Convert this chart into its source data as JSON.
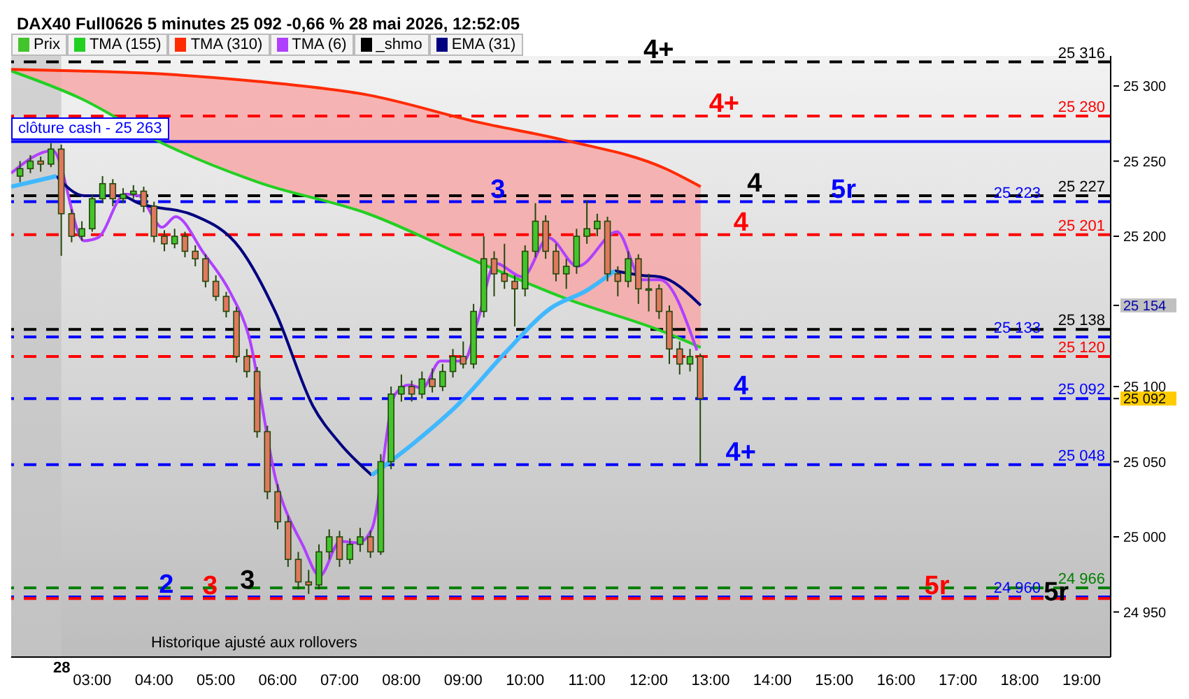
{
  "chart_data": {
    "type": "candlestick",
    "title": "DAX40 Full0626 5 minutes 25 092 -0,66 % 28 mai 2026, 12:52:05",
    "legend": "top left",
    "xlim": [
      1.69,
      19.47
    ],
    "xticks": [
      {
        "value": 3,
        "label": "03:00"
      },
      {
        "value": 4,
        "label": "04:00"
      },
      {
        "value": 5,
        "label": "05:00"
      },
      {
        "value": 6,
        "label": "06:00"
      },
      {
        "value": 7,
        "label": "07:00"
      },
      {
        "value": 8,
        "label": "08:00"
      },
      {
        "value": 9,
        "label": "09:00"
      },
      {
        "value": 10,
        "label": "10:00"
      },
      {
        "value": 11,
        "label": "11:00"
      },
      {
        "value": 12,
        "label": "12:00"
      },
      {
        "value": 13,
        "label": "13:00"
      },
      {
        "value": 14,
        "label": "14:00"
      },
      {
        "value": 15,
        "label": "15:00"
      },
      {
        "value": 16,
        "label": "16:00"
      },
      {
        "value": 17,
        "label": "17:00"
      },
      {
        "value": 18,
        "label": "18:00"
      },
      {
        "value": 19,
        "label": "19:00"
      }
    ],
    "ylim": [
      24920,
      25320
    ],
    "yticks": [
      {
        "value": 24950,
        "label": "24 950"
      },
      {
        "value": 25000,
        "label": "25 000"
      },
      {
        "value": 25050,
        "label": "25 050"
      },
      {
        "value": 25100,
        "label": "25 100"
      },
      {
        "value": 25200,
        "label": "25 200"
      },
      {
        "value": 25250,
        "label": "25 250"
      },
      {
        "value": 25300,
        "label": "25 300"
      },
      {
        "value": 25154,
        "label": "25 154"
      },
      {
        "value": 25092,
        "label": "25 092"
      }
    ],
    "bands": [
      {
        "axis": "x",
        "from": 1.69,
        "to": 2.5,
        "color": "#c4c4c4"
      }
    ],
    "ref_lines": [
      {
        "axis": "y",
        "value": 25316,
        "label": "25 316",
        "color": "#000000",
        "line_style": "dashed"
      },
      {
        "axis": "y",
        "value": 25280,
        "label": "25 280",
        "color": "#ff0000",
        "line_style": "dashed"
      },
      {
        "axis": "y",
        "value": 25263,
        "label": "clôture cash -  25 263",
        "color": "#0000ff",
        "line_style": "solid"
      },
      {
        "axis": "y",
        "value": 25227,
        "label": "25 227",
        "color": "#000000",
        "line_style": "dashed"
      },
      {
        "axis": "y",
        "value": 25223,
        "label": "25 223",
        "color": "#0000ff",
        "line_style": "dashed"
      },
      {
        "axis": "y",
        "value": 25201,
        "label": "25 201",
        "color": "#ff0000",
        "line_style": "dashed"
      },
      {
        "axis": "y",
        "value": 25138,
        "label": "25 138",
        "color": "#000000",
        "line_style": "dashed"
      },
      {
        "axis": "y",
        "value": 25133,
        "label": "25 133",
        "color": "#0000ff",
        "line_style": "dashed"
      },
      {
        "axis": "y",
        "value": 25120,
        "label": "25 120",
        "color": "#ff0000",
        "line_style": "dashed"
      },
      {
        "axis": "y",
        "value": 25092,
        "label": "25 092",
        "color": "#0000ff",
        "line_style": "dashed"
      },
      {
        "axis": "y",
        "value": 25048,
        "label": "25 048",
        "color": "#0000ff",
        "line_style": "dashed"
      },
      {
        "axis": "y",
        "value": 24966,
        "label": "24 966",
        "color": "#008000",
        "line_style": "dashed"
      },
      {
        "axis": "y",
        "value": 24960,
        "label": "24 960",
        "color": "#0000ff",
        "line_style": "dashed"
      },
      {
        "axis": "y",
        "value": 24959,
        "color": "#ff0000",
        "line_style": "dashed"
      }
    ],
    "annotations": [
      "28",
      {
        "text": "4+",
        "x": 12.16,
        "y": 25316
      },
      {
        "text": "4+",
        "x": 13.22,
        "y": 25280
      },
      {
        "text": "3",
        "x": 9.56,
        "y": 25223
      },
      {
        "text": "4",
        "x": 13.71,
        "y": 25227
      },
      {
        "text": "5r",
        "x": 15.15,
        "y": 25223
      },
      {
        "text": "4",
        "x": 13.49,
        "y": 25201
      },
      {
        "text": "4",
        "x": 13.49,
        "y": 25092
      },
      {
        "text": "4+",
        "x": 13.49,
        "y": 25048
      },
      {
        "text": "2",
        "x": 4.2,
        "y": 24960
      },
      {
        "text": "3",
        "x": 4.91,
        "y": 24959
      },
      {
        "text": "3",
        "x": 5.51,
        "y": 24963
      },
      {
        "text": "5r",
        "x": 16.66,
        "y": 24959
      },
      {
        "text": "5r",
        "x": 18.59,
        "y": 24955
      },
      "Historique ajusté aux rollovers"
    ],
    "series": [
      {
        "name": "Prix",
        "type": "candlestick",
        "color": "#44c42c",
        "colors": [
          "#44c42c",
          "#44c42c",
          "#e07860",
          "#44c42c",
          "#e07860",
          "#e07860",
          "#44c42c",
          "#44c42c",
          "#44c42c",
          "#e07860",
          "#44c42c",
          "#44c42c",
          "#e07860",
          "#e07860",
          "#e07860",
          "#44c42c",
          "#e07860",
          "#e07860",
          "#e07860",
          "#e07860",
          "#e07860",
          "#e07860",
          "#e07860",
          "#e07860",
          "#e07860",
          "#e07860",
          "#e07860",
          "#e07860",
          "#e07860",
          "#44c42c",
          "#44c42c",
          "#e07860",
          "#44c42c",
          "#44c42c",
          "#e07860",
          "#44c42c",
          "#44c42c",
          "#44c42c",
          "#e07860",
          "#44c42c",
          "#e07860",
          "#44c42c",
          "#44c42c",
          "#e07860",
          "#44c42c",
          "#44c42c",
          "#e07860",
          "#e07860",
          "#e07860",
          "#44c42c",
          "#44c42c",
          "#e07860",
          "#e07860",
          "#44c42c",
          "#44c42c",
          "#44c42c",
          "#44c42c",
          "#e07860",
          "#e07860",
          "#44c42c",
          "#e07860",
          "#44c42c",
          "#e07860",
          "#e07860",
          "#e07860",
          "#44c42c",
          "#e07860"
        ],
        "x": [
          1.833,
          2,
          2.167,
          2.333,
          2.5,
          2.667,
          2.833,
          3,
          3.167,
          3.333,
          3.5,
          3.667,
          3.833,
          4,
          4.167,
          4.333,
          4.5,
          4.667,
          4.833,
          5,
          5.167,
          5.333,
          5.5,
          5.667,
          5.833,
          6,
          6.167,
          6.333,
          6.5,
          6.667,
          6.833,
          7,
          7.167,
          7.333,
          7.5,
          7.667,
          7.833,
          8,
          8.167,
          8.333,
          8.5,
          8.667,
          8.833,
          9,
          9.167,
          9.333,
          9.5,
          9.667,
          9.833,
          10,
          10.167,
          10.333,
          10.5,
          10.667,
          10.833,
          11,
          11.167,
          11.333,
          11.5,
          11.667,
          11.833,
          12,
          12.167,
          12.333,
          12.5,
          12.667,
          12.833
        ],
        "ohlc": [
          [
            25240,
            25250,
            25236,
            25245
          ],
          [
            25245,
            25254,
            25242,
            25250
          ],
          [
            25250,
            25253,
            25243,
            25248
          ],
          [
            25248,
            25262,
            25246,
            25258
          ],
          [
            25258,
            25261,
            25187,
            25215
          ],
          [
            25215,
            25218,
            25196,
            25200
          ],
          [
            25200,
            25210,
            25197,
            25205
          ],
          [
            25205,
            25228,
            25203,
            25225
          ],
          [
            25225,
            25240,
            25222,
            25235
          ],
          [
            25235,
            25238,
            25220,
            25225
          ],
          [
            25225,
            25232,
            25222,
            25228
          ],
          [
            25228,
            25234,
            25225,
            25230
          ],
          [
            25230,
            25233,
            25216,
            25220
          ],
          [
            25220,
            25223,
            25196,
            25200
          ],
          [
            25200,
            25204,
            25190,
            25195
          ],
          [
            25195,
            25205,
            25192,
            25200
          ],
          [
            25200,
            25203,
            25186,
            25190
          ],
          [
            25190,
            25194,
            25180,
            25185
          ],
          [
            25185,
            25188,
            25166,
            25170
          ],
          [
            25170,
            25174,
            25157,
            25160
          ],
          [
            25160,
            25163,
            25146,
            25150
          ],
          [
            25150,
            25153,
            25116,
            25120
          ],
          [
            25120,
            25125,
            25106,
            25110
          ],
          [
            25110,
            25113,
            25066,
            25070
          ],
          [
            25070,
            25074,
            25025,
            25030
          ],
          [
            25030,
            25035,
            25005,
            25010
          ],
          [
            25010,
            25014,
            24980,
            24985
          ],
          [
            24985,
            24990,
            24965,
            24970
          ],
          [
            24970,
            24978,
            24962,
            24968
          ],
          [
            24968,
            24995,
            24965,
            24990
          ],
          [
            24990,
            25005,
            24985,
            25000
          ],
          [
            25000,
            25004,
            24980,
            24985
          ],
          [
            24985,
            24999,
            24982,
            24995
          ],
          [
            24995,
            25006,
            24990,
            25000
          ],
          [
            25000,
            25004,
            24986,
            24990
          ],
          [
            24990,
            25055,
            24988,
            25050
          ],
          [
            25050,
            25100,
            25045,
            25095
          ],
          [
            25095,
            25108,
            25090,
            25100
          ],
          [
            25100,
            25104,
            25090,
            25095
          ],
          [
            25095,
            25110,
            25092,
            25105
          ],
          [
            25105,
            25112,
            25096,
            25100
          ],
          [
            25100,
            25115,
            25097,
            25110
          ],
          [
            25110,
            25125,
            25106,
            25120
          ],
          [
            25120,
            25130,
            25112,
            25115
          ],
          [
            25115,
            25155,
            25112,
            25150
          ],
          [
            25150,
            25200,
            25146,
            25185
          ],
          [
            25185,
            25190,
            25160,
            25175
          ],
          [
            25175,
            25195,
            25165,
            25170
          ],
          [
            25170,
            25174,
            25140,
            25165
          ],
          [
            25165,
            25194,
            25160,
            25190
          ],
          [
            25190,
            25222,
            25186,
            25210
          ],
          [
            25210,
            25214,
            25185,
            25190
          ],
          [
            25190,
            25195,
            25170,
            25175
          ],
          [
            25175,
            25185,
            25165,
            25180
          ],
          [
            25180,
            25205,
            25175,
            25200
          ],
          [
            25200,
            25224,
            25195,
            25205
          ],
          [
            25205,
            25215,
            25200,
            25210
          ],
          [
            25210,
            25213,
            25170,
            25175
          ],
          [
            25175,
            25180,
            25160,
            25170
          ],
          [
            25170,
            25190,
            25166,
            25185
          ],
          [
            25185,
            25188,
            25155,
            25165
          ],
          [
            25165,
            25175,
            25150,
            25165
          ],
          [
            25165,
            25168,
            25145,
            25150
          ],
          [
            25150,
            25154,
            25115,
            25125
          ],
          [
            25125,
            25130,
            25108,
            25115
          ],
          [
            25115,
            25125,
            25110,
            25120
          ],
          [
            25120,
            25122,
            25048,
            25092
          ]
        ]
      },
      {
        "name": "TMA (155)",
        "type": "line",
        "color": "#22d022",
        "x": [
          1.69,
          2.8,
          4.13,
          5.68,
          7.46,
          9.23,
          10.63,
          12.27,
          12.84
        ],
        "values": [
          25310,
          25292,
          25262,
          25236,
          25215,
          25183,
          25159,
          25136,
          25126
        ]
      },
      {
        "name": "TMA (310)",
        "type": "line",
        "color": "#ff2a00",
        "x": [
          1.69,
          2.8,
          4.13,
          5.68,
          7.46,
          9.23,
          10.63,
          12.27,
          12.84
        ],
        "values": [
          25311,
          25310,
          25308,
          25303,
          25294,
          25276,
          25264,
          25245,
          25233
        ],
        "lower": [
          25310,
          25292,
          25262,
          25236,
          25215,
          25183,
          25159,
          25136,
          25126
        ],
        "upper": [
          25311,
          25310,
          25308,
          25303,
          25294,
          25276,
          25264,
          25245,
          25233
        ]
      },
      {
        "name": "TMA (6)",
        "type": "line",
        "color": "#b040ff",
        "x": [
          1.69,
          2.36,
          2.87,
          3.09,
          3.53,
          3.75,
          4.13,
          4.35,
          4.8,
          5.24,
          5.53,
          5.97,
          6.41,
          6.68,
          7.01,
          7.3,
          7.52,
          7.9,
          8.12,
          8.34,
          8.63,
          9.01,
          9.23,
          9.52,
          9.96,
          10.38,
          10.85,
          11.49,
          11.89,
          12.18,
          12.78
        ],
        "values": [
          25242,
          25257,
          25197,
          25199,
          25228,
          25227,
          25206,
          25213,
          25189,
          25162,
          25134,
          25038,
          24994,
          24974,
          24997,
          24996,
          25005,
          25095,
          25101,
          25099,
          25117,
          25117,
          25143,
          25182,
          25173,
          25199,
          25180,
          25203,
          25171,
          25171,
          25124
        ]
      },
      {
        "name": "_shmo",
        "type": "line",
        "color": "#000000"
      },
      {
        "name": "EMA (31)",
        "type": "line",
        "color": "#000080",
        "x": [
          2.42,
          2.87,
          3.47,
          3.75,
          4.64,
          5.39,
          5.97,
          6.57,
          7.01,
          7.52,
          9.5,
          11.45,
          11.89,
          12.18,
          12.84
        ],
        "values": [
          25240,
          25227,
          25227,
          25222,
          25214,
          25192,
          25149,
          25087,
          25062,
          25041,
          null,
          25177,
          25174,
          25173,
          25154
        ]
      },
      {
        "type": "line",
        "color": "#40b8ff",
        "x": [
          1.69,
          2.42,
          5,
          7.52,
          8.19,
          8.94,
          9.67,
          10.41,
          11,
          11.45
        ],
        "values": [
          25233,
          25240,
          null,
          25041,
          25062,
          25089,
          25122,
          25152,
          25164,
          25177
        ]
      }
    ]
  }
}
